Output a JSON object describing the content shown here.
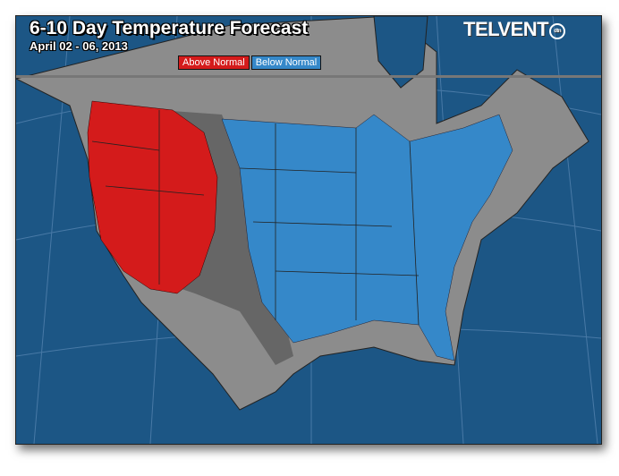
{
  "header": {
    "title": "6-10 Day Temperature Forecast",
    "subtitle": "April 02 - 06, 2013",
    "logo": "TELVENT",
    "logo_badge": "dtn"
  },
  "legend": {
    "items": [
      {
        "label": "Above Normal",
        "color": "#d41b1b"
      },
      {
        "label": "Below Normal",
        "color": "#3588c9"
      }
    ]
  },
  "colors": {
    "ocean": "#1c5685",
    "land": "#8c8c8c",
    "near_normal": "#666666",
    "above": "#d41b1b",
    "below": "#3588c9"
  }
}
